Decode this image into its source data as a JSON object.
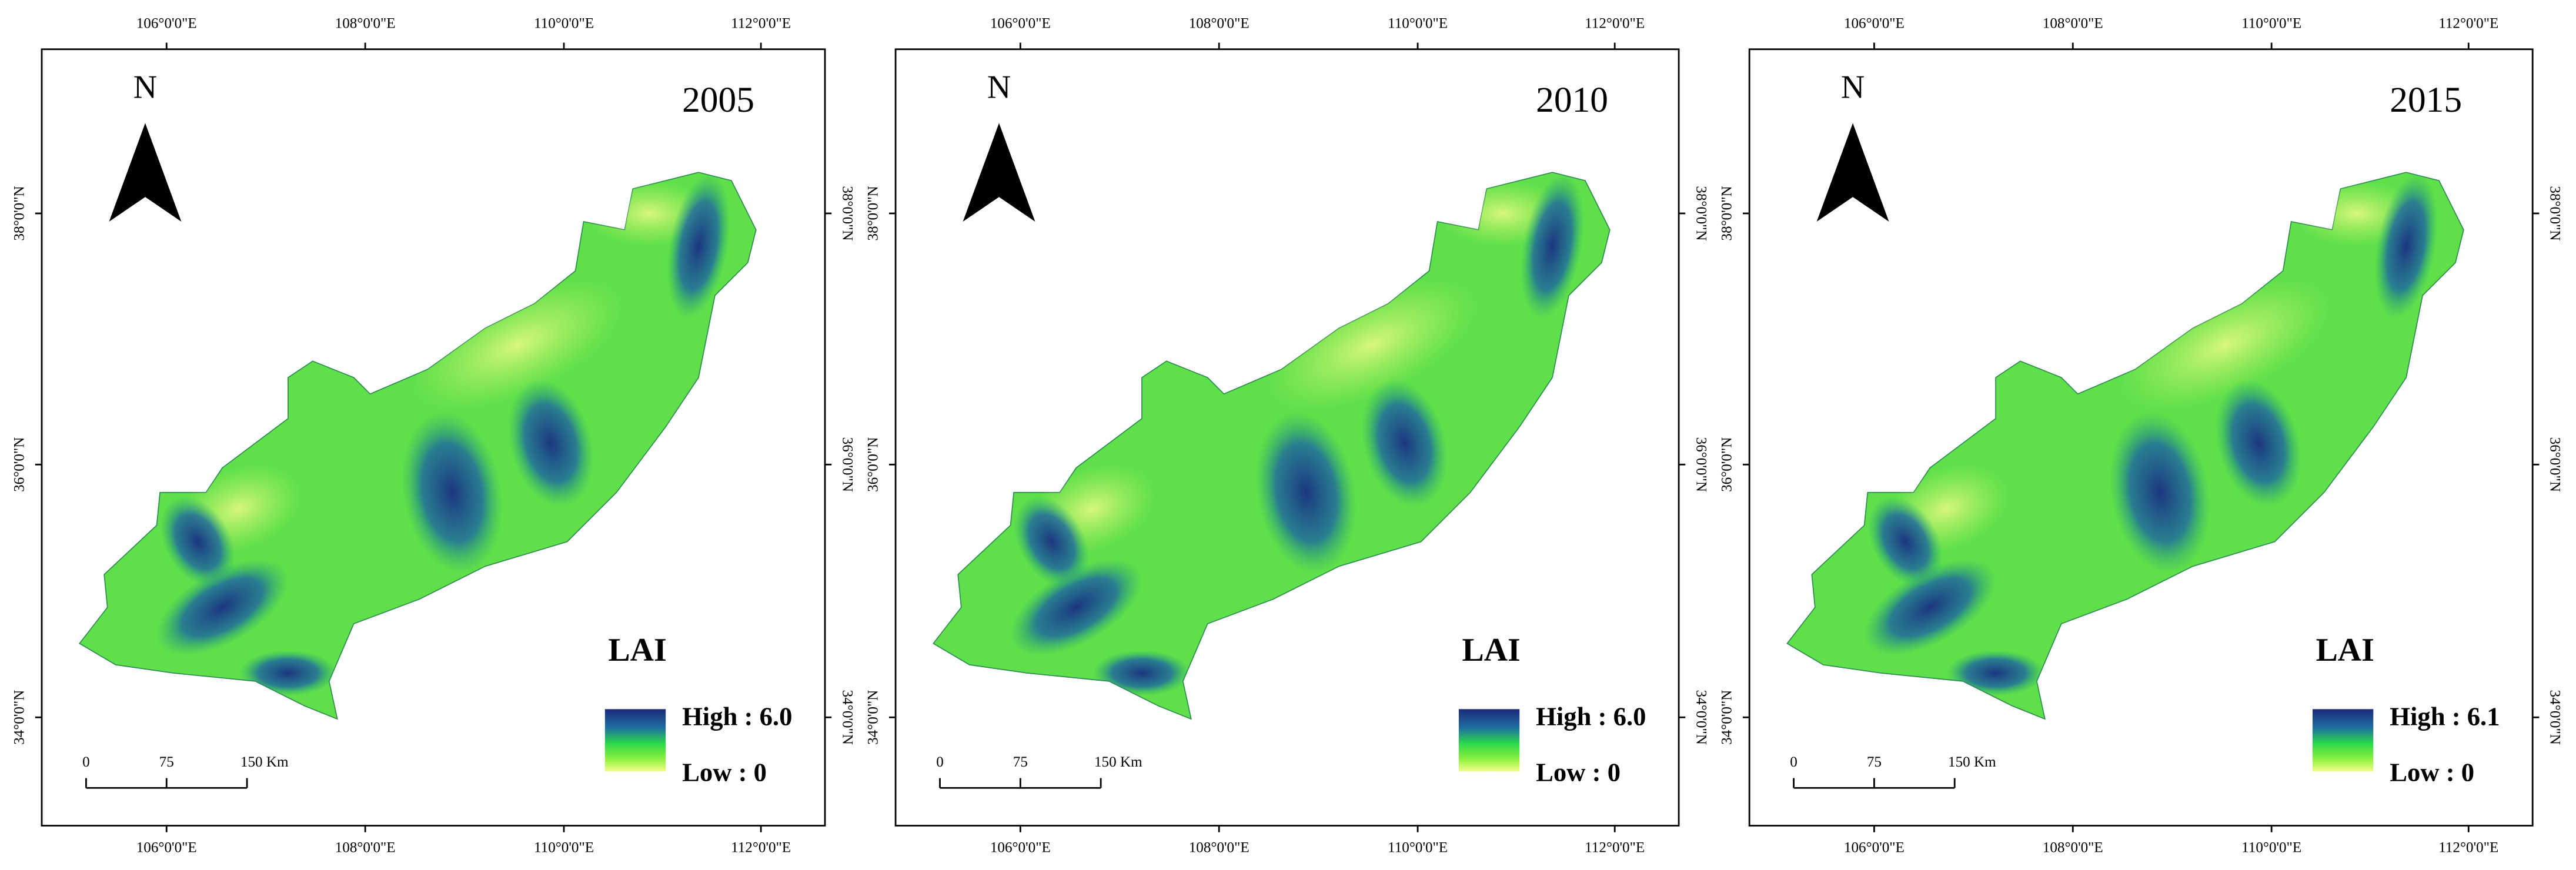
{
  "panels": [
    {
      "year": "2005",
      "legend": {
        "title": "LAI",
        "high": "High : 6.0",
        "low": "Low : 0"
      }
    },
    {
      "year": "2010",
      "legend": {
        "title": "LAI",
        "high": "High : 6.0",
        "low": "Low : 0"
      }
    },
    {
      "year": "2015",
      "legend": {
        "title": "LAI",
        "high": "High : 6.1",
        "low": "Low : 0"
      }
    }
  ],
  "north": "N",
  "lon_labels": [
    "106°0'0\"E",
    "108°0'0\"E",
    "110°0'0\"E",
    "112°0'0\"E"
  ],
  "lat_labels": [
    "38°0'0\"N",
    "36°0'0\"N",
    "34°0'0\"N"
  ],
  "scale_bar": [
    "0",
    "75",
    "150 Km"
  ]
}
